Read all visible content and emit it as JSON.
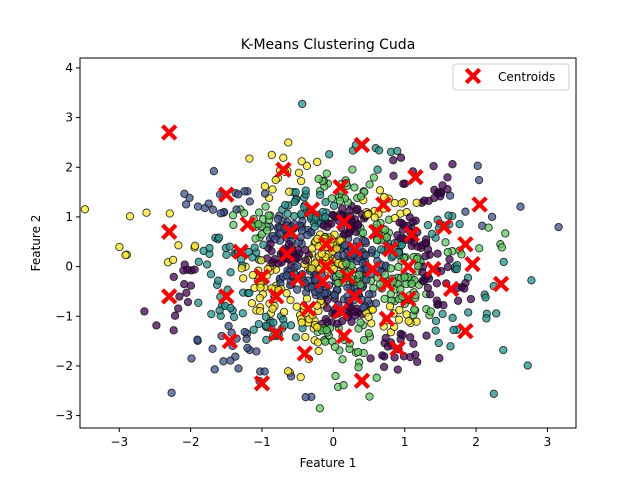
{
  "chart_data": {
    "type": "scatter",
    "title": "K-Means Clustering Cuda",
    "xlabel": "Feature 1",
    "ylabel": "Feature 2",
    "xlim": [
      -3.55,
      3.4
    ],
    "ylim": [
      -3.25,
      4.2
    ],
    "xticks": [
      -3,
      -2,
      -1,
      0,
      1,
      2,
      3
    ],
    "yticks": [
      -3,
      -2,
      -1,
      0,
      1,
      2,
      3,
      4
    ],
    "legend": {
      "placement": "top-right",
      "entries": [
        "Centroids"
      ]
    },
    "grid": false,
    "colors": {
      "centroid": "#ff0000",
      "point_edge": "#111111",
      "palette": [
        "#440154",
        "#3b528b",
        "#21918c",
        "#5ec962",
        "#fde725"
      ]
    },
    "points": {
      "count": 1000,
      "distribution": "standard normal, colored by cluster index on viridis scale"
    },
    "centroids": [
      [
        -2.3,
        2.7
      ],
      [
        0.4,
        2.45
      ],
      [
        -0.7,
        1.95
      ],
      [
        -1.5,
        1.45
      ],
      [
        0.1,
        1.6
      ],
      [
        1.15,
        1.8
      ],
      [
        -0.3,
        1.15
      ],
      [
        0.7,
        1.25
      ],
      [
        2.05,
        1.25
      ],
      [
        -1.2,
        0.85
      ],
      [
        0.15,
        0.9
      ],
      [
        1.55,
        0.8
      ],
      [
        -2.3,
        0.7
      ],
      [
        -0.6,
        0.7
      ],
      [
        0.6,
        0.7
      ],
      [
        1.1,
        0.65
      ],
      [
        -1.3,
        0.3
      ],
      [
        -0.1,
        0.45
      ],
      [
        0.3,
        0.35
      ],
      [
        1.85,
        0.45
      ],
      [
        -0.65,
        0.25
      ],
      [
        0.8,
        0.35
      ],
      [
        -0.1,
        0.0
      ],
      [
        0.55,
        -0.05
      ],
      [
        1.05,
        0.0
      ],
      [
        1.4,
        -0.05
      ],
      [
        1.95,
        0.05
      ],
      [
        -1.0,
        -0.2
      ],
      [
        -0.5,
        -0.25
      ],
      [
        0.2,
        -0.2
      ],
      [
        -2.3,
        -0.6
      ],
      [
        -1.5,
        -0.6
      ],
      [
        -0.8,
        -0.6
      ],
      [
        -0.15,
        -0.3
      ],
      [
        0.75,
        -0.35
      ],
      [
        1.65,
        -0.45
      ],
      [
        2.35,
        -0.35
      ],
      [
        -0.35,
        -0.85
      ],
      [
        0.3,
        -0.6
      ],
      [
        1.05,
        -0.65
      ],
      [
        0.1,
        -0.9
      ],
      [
        -0.8,
        -1.35
      ],
      [
        0.75,
        -1.05
      ],
      [
        -1.45,
        -1.5
      ],
      [
        0.15,
        -1.4
      ],
      [
        0.9,
        -1.65
      ],
      [
        1.85,
        -1.3
      ],
      [
        -0.4,
        -1.75
      ],
      [
        -1.0,
        -2.35
      ],
      [
        0.4,
        -2.3
      ]
    ]
  }
}
